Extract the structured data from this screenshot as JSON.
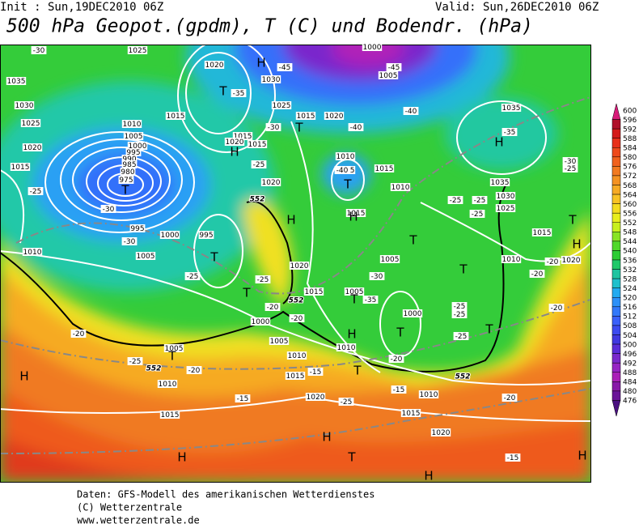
{
  "header": {
    "init": "Init : Sun,19DEC2010 06Z",
    "valid": "Valid: Sun,26DEC2010 06Z",
    "title": "500 hPa Geopot.(gpdm), T (C) und Bodendr. (hPa)"
  },
  "colorbar": {
    "labels": [
      600,
      596,
      592,
      588,
      584,
      580,
      576,
      572,
      568,
      564,
      560,
      556,
      552,
      548,
      544,
      540,
      536,
      532,
      528,
      524,
      520,
      516,
      512,
      508,
      504,
      500,
      496,
      492,
      488,
      484,
      480,
      476
    ],
    "colors": [
      "#d81b79",
      "#b0102a",
      "#d41a1a",
      "#e8301a",
      "#ee4a1c",
      "#f0621e",
      "#f27a20",
      "#f49222",
      "#f6aa24",
      "#f8c224",
      "#f4dc20",
      "#e8ee1e",
      "#c8f01e",
      "#88e424",
      "#50d82a",
      "#2ccc34",
      "#20c86a",
      "#1ec4a0",
      "#1ec0cc",
      "#22aaf0",
      "#2c90f8",
      "#3278fa",
      "#3a60fa",
      "#3c4af0",
      "#4038e0",
      "#5a2cd8",
      "#7a28cc",
      "#9624c4",
      "#aa20b8",
      "#8818a8",
      "#6a1498",
      "#4a1080"
    ]
  },
  "map": {
    "labels": [
      "1025",
      "1035",
      "1030",
      "1025",
      "1020",
      "1015",
      "1010",
      "1005",
      "1000",
      "995",
      "990",
      "985",
      "980",
      "975",
      "995",
      "1000",
      "1005",
      "1010",
      "995",
      "1020",
      "1030",
      "1025",
      "1020",
      "1015",
      "1015",
      "1015",
      "1020",
      "1015",
      "1020",
      "1010",
      "1015",
      "1015",
      "1010",
      "1015",
      "1020",
      "1015",
      "1005",
      "1005",
      "1000",
      "1000",
      "1005",
      "1010",
      "1010",
      "1015",
      "1020",
      "1015",
      "1010",
      "1005",
      "1015",
      "1010",
      "1020",
      "1015",
      "1010",
      "1020",
      "1030",
      "1025",
      "1035",
      "1035",
      "1000",
      "1005",
      "-30",
      "-45",
      "-45",
      "-40",
      "-40",
      "-35",
      "-35",
      "-30",
      "-25",
      "-30",
      "-25",
      "-25",
      "-30",
      "-30",
      "-25",
      "-25",
      "-20",
      "-20",
      "-30",
      "-35",
      "-25",
      "-25",
      "-25",
      "-20",
      "-25",
      "-20",
      "-20",
      "-15",
      "-15",
      "-15",
      "-20",
      "-20",
      "-20",
      "-20",
      "-15",
      "-25",
      "-25",
      "-25",
      "-25",
      "-40",
      "H",
      "T",
      "H",
      "T",
      "H",
      "H",
      "T",
      "T",
      "T",
      "T",
      "T",
      "T",
      "H",
      "T",
      "T",
      "T",
      "H",
      "H",
      "T",
      "H",
      "H",
      "H",
      "T",
      "H",
      "H",
      "T",
      "T",
      "552",
      "552",
      "552",
      "552"
    ]
  },
  "footer": {
    "lines": [
      "Daten: GFS-Modell des amerikanischen Wetterdienstes",
      "(C) Wetterzentrale",
      "www.wetterzentrale.de"
    ]
  }
}
